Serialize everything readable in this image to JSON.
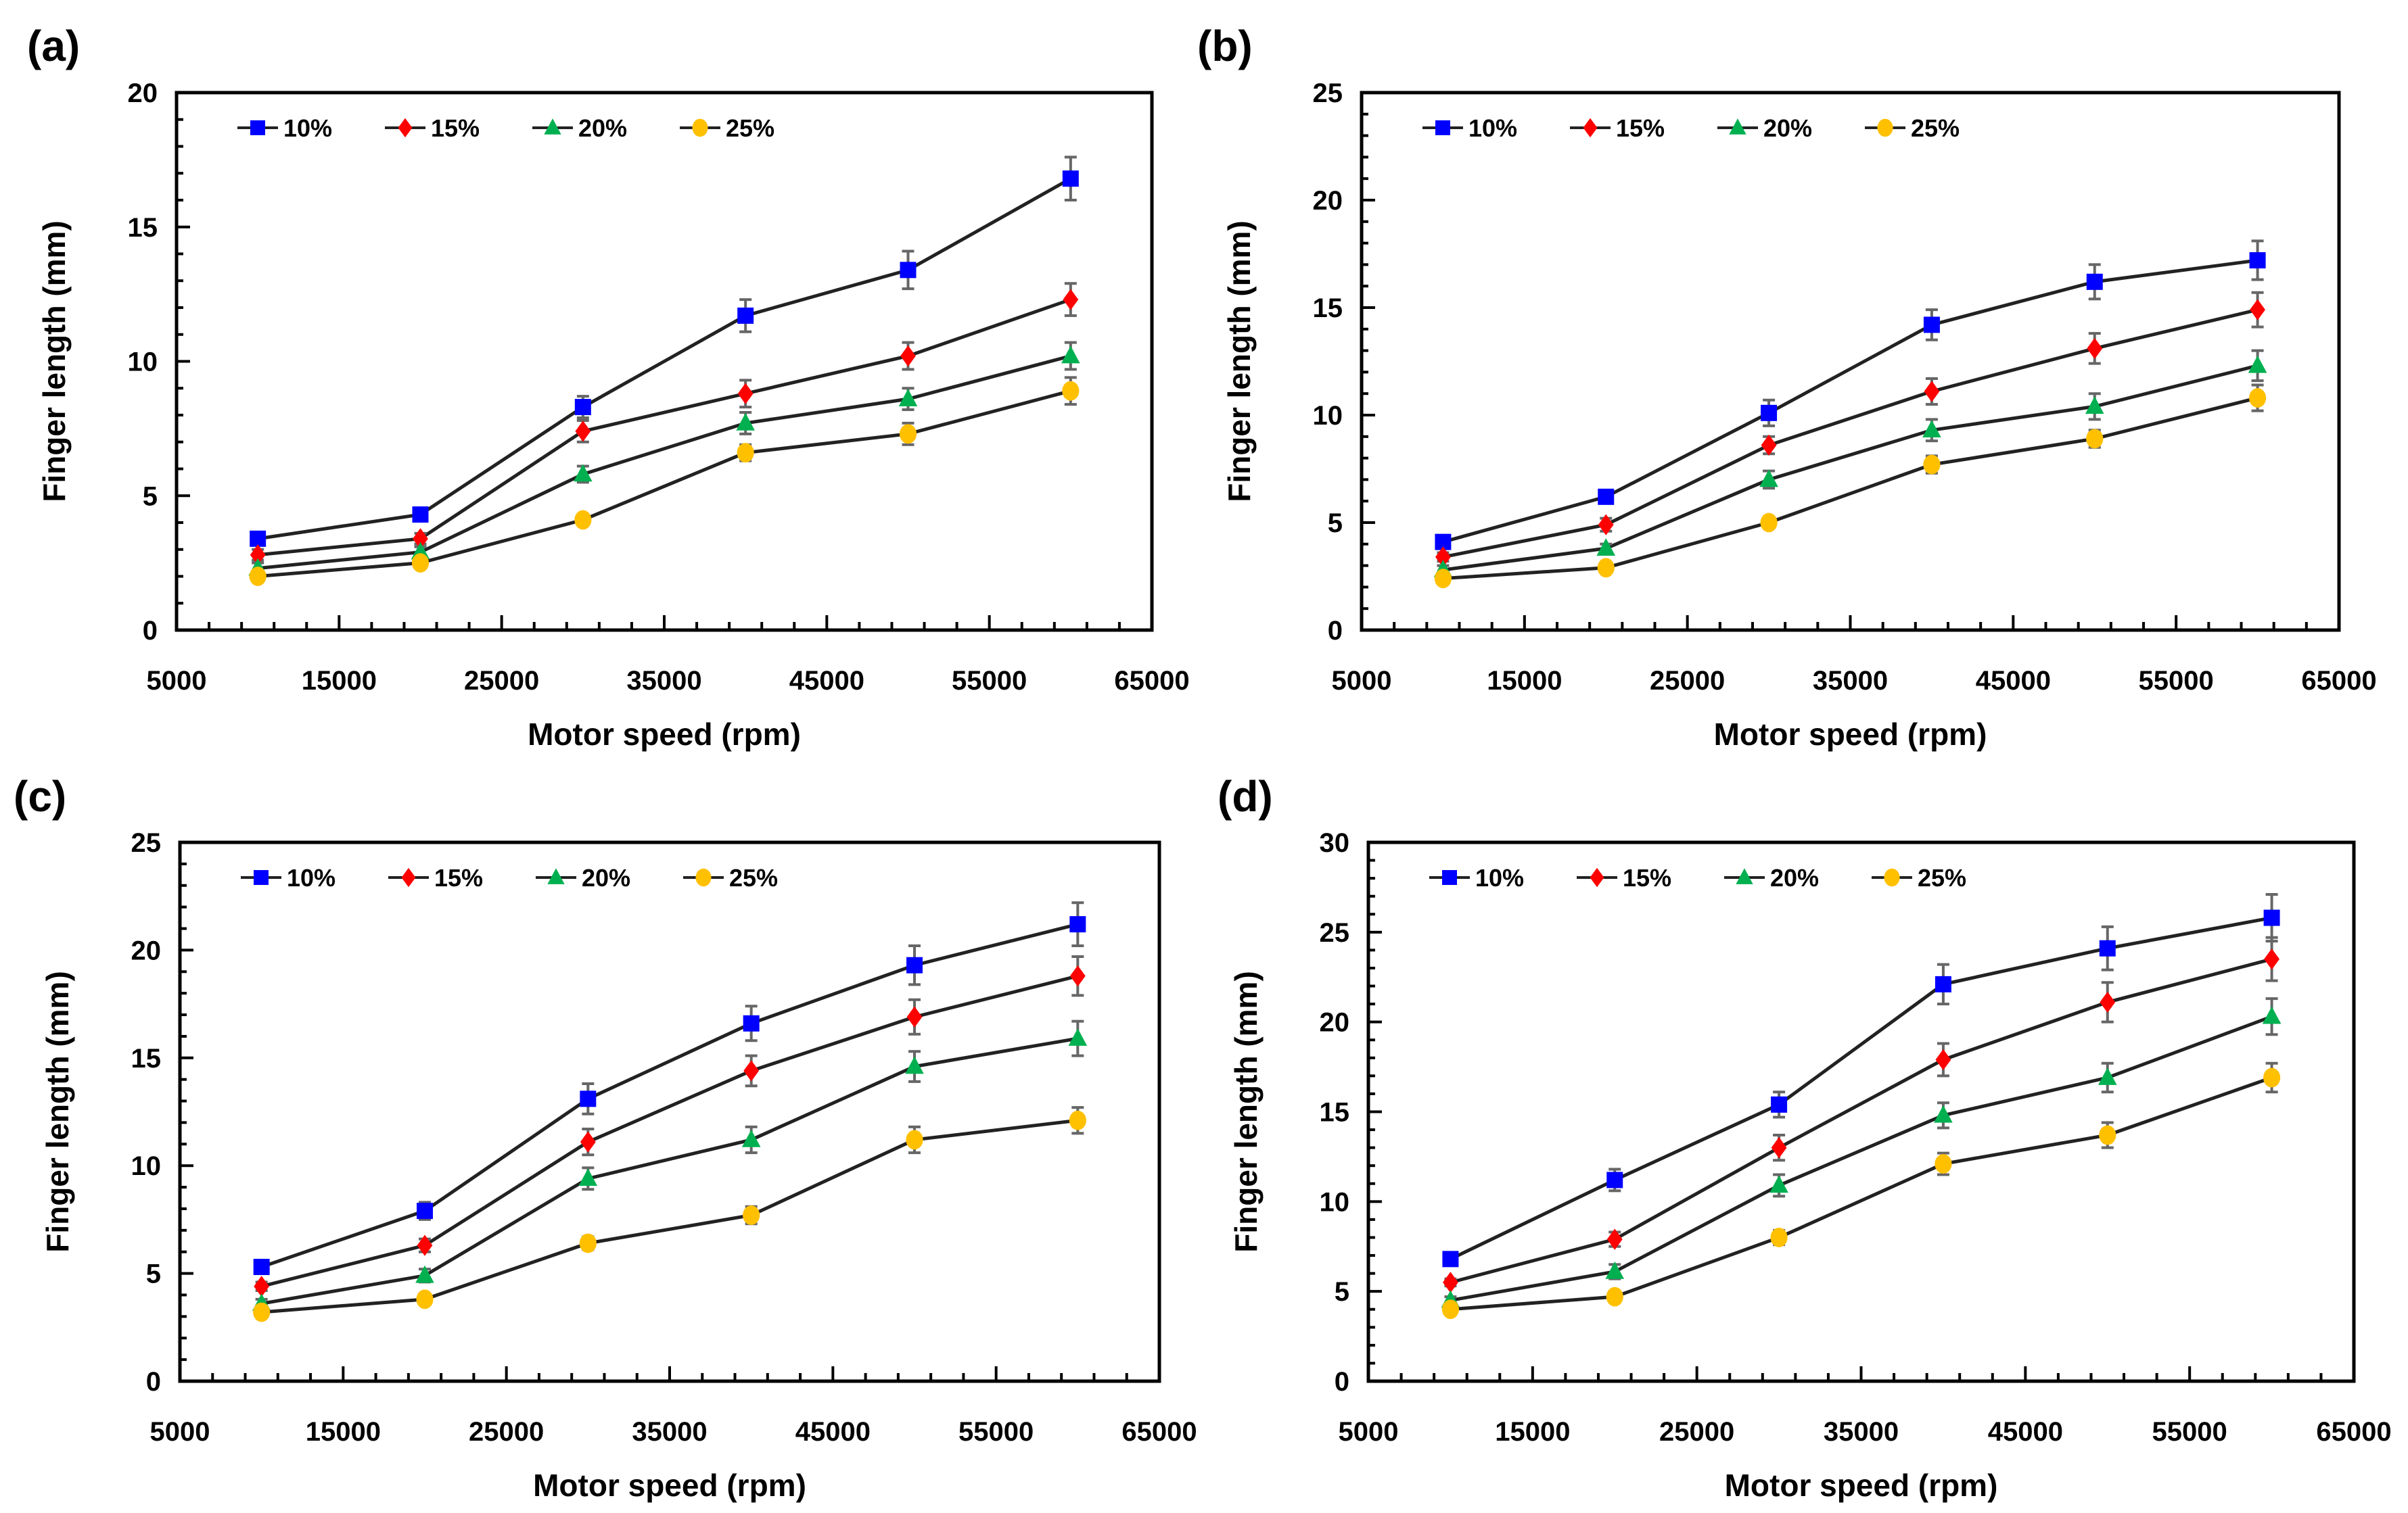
{
  "chart_data": [
    {
      "panel": "(a)",
      "type": "line",
      "xlabel": "Motor speed (rpm)",
      "ylabel": "Finger length (mm)",
      "xlim": [
        5000,
        65000
      ],
      "xticks": [
        5000,
        15000,
        25000,
        35000,
        45000,
        55000,
        65000
      ],
      "ylim": [
        0,
        20
      ],
      "yticks": [
        0,
        5,
        10,
        15,
        20
      ],
      "x": [
        10000,
        20000,
        30000,
        40000,
        50000,
        60000
      ],
      "legend": "top-left",
      "series": [
        {
          "name": "10%",
          "color": "#0000ff",
          "marker": "square",
          "values": [
            3.4,
            4.3,
            8.3,
            11.7,
            13.4,
            16.8
          ],
          "errors": [
            0.2,
            0.2,
            0.4,
            0.6,
            0.7,
            0.8
          ]
        },
        {
          "name": "15%",
          "color": "#ff0000",
          "marker": "diamond",
          "values": [
            2.8,
            3.4,
            7.4,
            8.8,
            10.2,
            12.3
          ],
          "errors": [
            0.2,
            0.2,
            0.4,
            0.5,
            0.5,
            0.6
          ]
        },
        {
          "name": "20%",
          "color": "#00b050",
          "marker": "triangle",
          "values": [
            2.3,
            2.9,
            5.8,
            7.7,
            8.6,
            10.2
          ],
          "errors": [
            0.2,
            0.2,
            0.3,
            0.4,
            0.4,
            0.5
          ]
        },
        {
          "name": "25%",
          "color": "#ffc000",
          "marker": "circle",
          "values": [
            2.0,
            2.5,
            4.1,
            6.6,
            7.3,
            8.9
          ],
          "errors": [
            0.1,
            0.2,
            0.2,
            0.3,
            0.4,
            0.5
          ]
        }
      ]
    },
    {
      "panel": "(b)",
      "type": "line",
      "xlabel": "Motor speed (rpm)",
      "ylabel": "Finger length (mm)",
      "xlim": [
        5000,
        65000
      ],
      "xticks": [
        5000,
        15000,
        25000,
        35000,
        45000,
        55000,
        65000
      ],
      "ylim": [
        0,
        25
      ],
      "yticks": [
        0,
        5,
        10,
        15,
        20,
        25
      ],
      "x": [
        10000,
        20000,
        30000,
        40000,
        50000,
        60000
      ],
      "legend": "top-left",
      "series": [
        {
          "name": "10%",
          "color": "#0000ff",
          "marker": "square",
          "values": [
            4.1,
            6.2,
            10.1,
            14.2,
            16.2,
            17.2
          ],
          "errors": [
            0.2,
            0.3,
            0.6,
            0.7,
            0.8,
            0.9
          ]
        },
        {
          "name": "15%",
          "color": "#ff0000",
          "marker": "diamond",
          "values": [
            3.4,
            4.9,
            8.6,
            11.1,
            13.1,
            14.9
          ],
          "errors": [
            0.2,
            0.3,
            0.4,
            0.6,
            0.7,
            0.8
          ]
        },
        {
          "name": "20%",
          "color": "#00b050",
          "marker": "triangle",
          "values": [
            2.8,
            3.8,
            7.0,
            9.3,
            10.4,
            12.3
          ],
          "errors": [
            0.2,
            0.2,
            0.4,
            0.5,
            0.6,
            0.7
          ]
        },
        {
          "name": "25%",
          "color": "#ffc000",
          "marker": "circle",
          "values": [
            2.4,
            2.9,
            5.0,
            7.7,
            8.9,
            10.8
          ],
          "errors": [
            0.1,
            0.2,
            0.2,
            0.4,
            0.4,
            0.6
          ]
        }
      ]
    },
    {
      "panel": "(c)",
      "type": "line",
      "xlabel": "Motor speed (rpm)",
      "ylabel": "Finger length (mm)",
      "xlim": [
        5000,
        65000
      ],
      "xticks": [
        5000,
        15000,
        25000,
        35000,
        45000,
        55000,
        65000
      ],
      "ylim": [
        0,
        25
      ],
      "yticks": [
        0,
        5,
        10,
        15,
        20,
        25
      ],
      "x": [
        10000,
        20000,
        30000,
        40000,
        50000,
        60000
      ],
      "legend": "top-left",
      "series": [
        {
          "name": "10%",
          "color": "#0000ff",
          "marker": "square",
          "values": [
            5.3,
            7.9,
            13.1,
            16.6,
            19.3,
            21.2
          ],
          "errors": [
            0.2,
            0.4,
            0.7,
            0.8,
            0.9,
            1.0
          ]
        },
        {
          "name": "15%",
          "color": "#ff0000",
          "marker": "diamond",
          "values": [
            4.4,
            6.3,
            11.1,
            14.4,
            16.9,
            18.8
          ],
          "errors": [
            0.2,
            0.3,
            0.6,
            0.7,
            0.8,
            0.9
          ]
        },
        {
          "name": "20%",
          "color": "#00b050",
          "marker": "triangle",
          "values": [
            3.6,
            4.9,
            9.4,
            11.2,
            14.6,
            15.9
          ],
          "errors": [
            0.2,
            0.3,
            0.5,
            0.6,
            0.7,
            0.8
          ]
        },
        {
          "name": "25%",
          "color": "#ffc000",
          "marker": "circle",
          "values": [
            3.2,
            3.8,
            6.4,
            7.7,
            11.2,
            12.1
          ],
          "errors": [
            0.2,
            0.2,
            0.3,
            0.4,
            0.6,
            0.6
          ]
        }
      ]
    },
    {
      "panel": "(d)",
      "type": "line",
      "xlabel": "Motor speed (rpm)",
      "ylabel": "Finger length (mm)",
      "xlim": [
        5000,
        65000
      ],
      "xticks": [
        5000,
        15000,
        25000,
        35000,
        45000,
        55000,
        65000
      ],
      "ylim": [
        0,
        30
      ],
      "yticks": [
        0,
        5,
        10,
        15,
        20,
        25,
        30
      ],
      "x": [
        10000,
        20000,
        30000,
        40000,
        50000,
        60000
      ],
      "legend": "top-left",
      "series": [
        {
          "name": "10%",
          "color": "#0000ff",
          "marker": "square",
          "values": [
            6.8,
            11.2,
            15.4,
            22.1,
            24.1,
            25.8
          ],
          "errors": [
            0.3,
            0.6,
            0.7,
            1.1,
            1.2,
            1.3
          ]
        },
        {
          "name": "15%",
          "color": "#ff0000",
          "marker": "diamond",
          "values": [
            5.5,
            7.9,
            13.0,
            17.9,
            21.1,
            23.5
          ],
          "errors": [
            0.2,
            0.4,
            0.7,
            0.9,
            1.1,
            1.2
          ]
        },
        {
          "name": "20%",
          "color": "#00b050",
          "marker": "triangle",
          "values": [
            4.5,
            6.1,
            10.9,
            14.8,
            16.9,
            20.3
          ],
          "errors": [
            0.2,
            0.4,
            0.6,
            0.7,
            0.8,
            1.0
          ]
        },
        {
          "name": "25%",
          "color": "#ffc000",
          "marker": "circle",
          "values": [
            4.0,
            4.7,
            8.0,
            12.1,
            13.7,
            16.9
          ],
          "errors": [
            0.2,
            0.2,
            0.4,
            0.6,
            0.7,
            0.8
          ]
        }
      ]
    }
  ]
}
